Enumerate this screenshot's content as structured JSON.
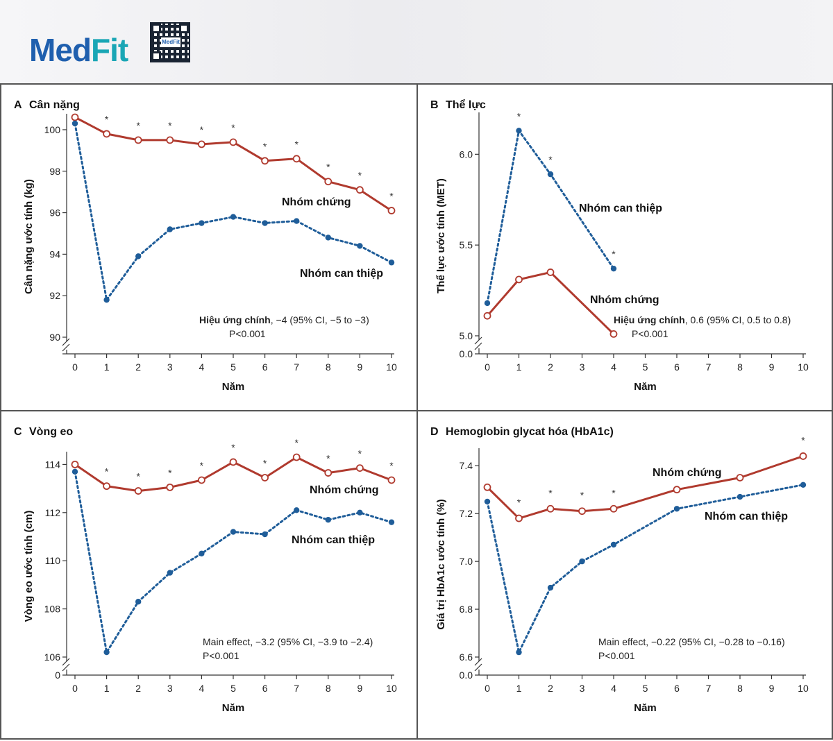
{
  "brand": {
    "logo_part1": "Med",
    "logo_part2": "Fit",
    "qr_label": "MedFit"
  },
  "colors": {
    "control": "#b03a2e",
    "intervention": "#1f5d99",
    "frame": "#555555",
    "axis": "#333333"
  },
  "chart_data": [
    {
      "id": "A",
      "type": "line",
      "panel_label": "A",
      "title": "Cân nặng",
      "xlabel": "Năm",
      "ylabel": "Cân nặng ước tính (kg)",
      "xlim": [
        0,
        10
      ],
      "ylim": [
        90,
        100.5
      ],
      "xticks": [
        0,
        1,
        2,
        3,
        4,
        5,
        6,
        7,
        8,
        9,
        10
      ],
      "yticks": [
        90,
        92,
        94,
        96,
        98,
        100
      ],
      "ytick_labels": [
        "90",
        "92",
        "94",
        "96",
        "98",
        "100"
      ],
      "axis_break": true,
      "series": [
        {
          "name": "Nhóm chứng",
          "style": "solid",
          "marker": "open",
          "x": [
            0,
            1,
            2,
            3,
            4,
            5,
            6,
            7,
            8,
            9,
            10
          ],
          "values": [
            100.6,
            99.8,
            99.5,
            99.5,
            99.3,
            99.4,
            98.5,
            98.6,
            97.5,
            97.1,
            96.1
          ]
        },
        {
          "name": "Nhóm can thiệp",
          "style": "dotted",
          "marker": "filled",
          "x": [
            0,
            1,
            2,
            3,
            4,
            5,
            6,
            7,
            8,
            9,
            10
          ],
          "values": [
            100.3,
            91.8,
            93.9,
            95.2,
            95.5,
            95.8,
            95.5,
            95.6,
            94.8,
            94.4,
            93.6
          ]
        }
      ],
      "significance_years": [
        1,
        2,
        3,
        4,
        5,
        6,
        7,
        8,
        9,
        10
      ],
      "significance_symbol": "*",
      "annotation": {
        "label": "Hiệu ứng chính",
        "detail": ", −4 (95% CI, −5 to −3)",
        "p": "P<0.001"
      }
    },
    {
      "id": "B",
      "type": "line",
      "panel_label": "B",
      "title": "Thể lực",
      "xlabel": "Năm",
      "ylabel": "Thể lực ước tính (MET)",
      "xlim": [
        0,
        10
      ],
      "ylim": [
        5.0,
        6.2
      ],
      "xticks": [
        0,
        1,
        2,
        3,
        4,
        5,
        6,
        7,
        8,
        9,
        10
      ],
      "yticks": [
        5.0,
        5.5,
        6.0
      ],
      "ytick_labels": [
        "5.0",
        "5.5",
        "6.0"
      ],
      "axis_break": true,
      "zero_tick": "0.0",
      "series": [
        {
          "name": "Nhóm chứng",
          "style": "solid",
          "marker": "open",
          "x": [
            0,
            1,
            2,
            4
          ],
          "values": [
            5.11,
            5.31,
            5.35,
            5.01
          ]
        },
        {
          "name": "Nhóm can thiệp",
          "style": "dotted",
          "marker": "filled",
          "x": [
            0,
            1,
            2,
            4
          ],
          "values": [
            5.18,
            6.13,
            5.89,
            5.37
          ]
        }
      ],
      "significance_years": [
        1,
        2,
        4
      ],
      "significance_symbol": "*",
      "annotation": {
        "label": "Hiệu ứng chính",
        "detail": ", 0.6 (95% CI, 0.5 to 0.8)",
        "p": "P<0.001"
      }
    },
    {
      "id": "C",
      "type": "line",
      "panel_label": "C",
      "title": "Vòng eo",
      "xlabel": "Năm",
      "ylabel": "Vòng eo ước tính (cm)",
      "xlim": [
        0,
        10
      ],
      "ylim": [
        106,
        114.3
      ],
      "xticks": [
        0,
        1,
        2,
        3,
        4,
        5,
        6,
        7,
        8,
        9,
        10
      ],
      "yticks": [
        106,
        108,
        110,
        112,
        114
      ],
      "ytick_labels": [
        "106",
        "108",
        "110",
        "112",
        "114"
      ],
      "axis_break": true,
      "zero_tick": "0",
      "series": [
        {
          "name": "Nhóm chứng",
          "style": "solid",
          "marker": "open",
          "x": [
            0,
            1,
            2,
            3,
            4,
            5,
            6,
            7,
            8,
            9,
            10
          ],
          "values": [
            114.0,
            113.1,
            112.9,
            113.05,
            113.35,
            114.1,
            113.45,
            114.3,
            113.65,
            113.85,
            113.35
          ]
        },
        {
          "name": "Nhóm can thiệp",
          "style": "dotted",
          "marker": "filled",
          "x": [
            0,
            1,
            2,
            3,
            4,
            5,
            6,
            7,
            8,
            9,
            10
          ],
          "values": [
            113.7,
            106.2,
            108.3,
            109.5,
            110.3,
            111.2,
            111.1,
            112.1,
            111.7,
            112.0,
            111.6
          ]
        }
      ],
      "significance_years": [
        1,
        2,
        3,
        4,
        5,
        6,
        7,
        8,
        9,
        10
      ],
      "significance_symbol": "*",
      "annotation": {
        "label": "",
        "detail": "Main effect, −3.2 (95% CI, −3.9 to −2.4)",
        "p": "P<0.001"
      }
    },
    {
      "id": "D",
      "type": "line",
      "panel_label": "D",
      "title": "Hemoglobin glycat hóa (HbA1c)",
      "xlabel": "Năm",
      "ylabel": "Giá trị HbA1c ước tính (%)",
      "xlim": [
        0,
        10
      ],
      "ylim": [
        6.6,
        7.45
      ],
      "xticks": [
        0,
        1,
        2,
        3,
        4,
        5,
        6,
        7,
        8,
        9,
        10
      ],
      "yticks": [
        6.6,
        6.8,
        7.0,
        7.2,
        7.4
      ],
      "ytick_labels": [
        "6.6",
        "6.8",
        "7.0",
        "7.2",
        "7.4"
      ],
      "axis_break": true,
      "zero_tick": "0.0",
      "series": [
        {
          "name": "Nhóm chứng",
          "style": "solid",
          "marker": "open",
          "x": [
            0,
            1,
            2,
            3,
            4,
            6,
            8,
            10
          ],
          "values": [
            7.31,
            7.18,
            7.22,
            7.21,
            7.22,
            7.3,
            7.35,
            7.44
          ]
        },
        {
          "name": "Nhóm can thiệp",
          "style": "dotted",
          "marker": "filled",
          "x": [
            0,
            1,
            2,
            3,
            4,
            6,
            8,
            10
          ],
          "values": [
            7.25,
            6.62,
            6.89,
            7.0,
            7.07,
            7.22,
            7.27,
            7.32
          ]
        }
      ],
      "significance_years": [
        1,
        2,
        3,
        4,
        10
      ],
      "significance_symbol": "*",
      "annotation": {
        "label": "",
        "detail": "Main effect, −0.22 (95% CI, −0.28 to −0.16)",
        "p": "P<0.001"
      }
    }
  ]
}
